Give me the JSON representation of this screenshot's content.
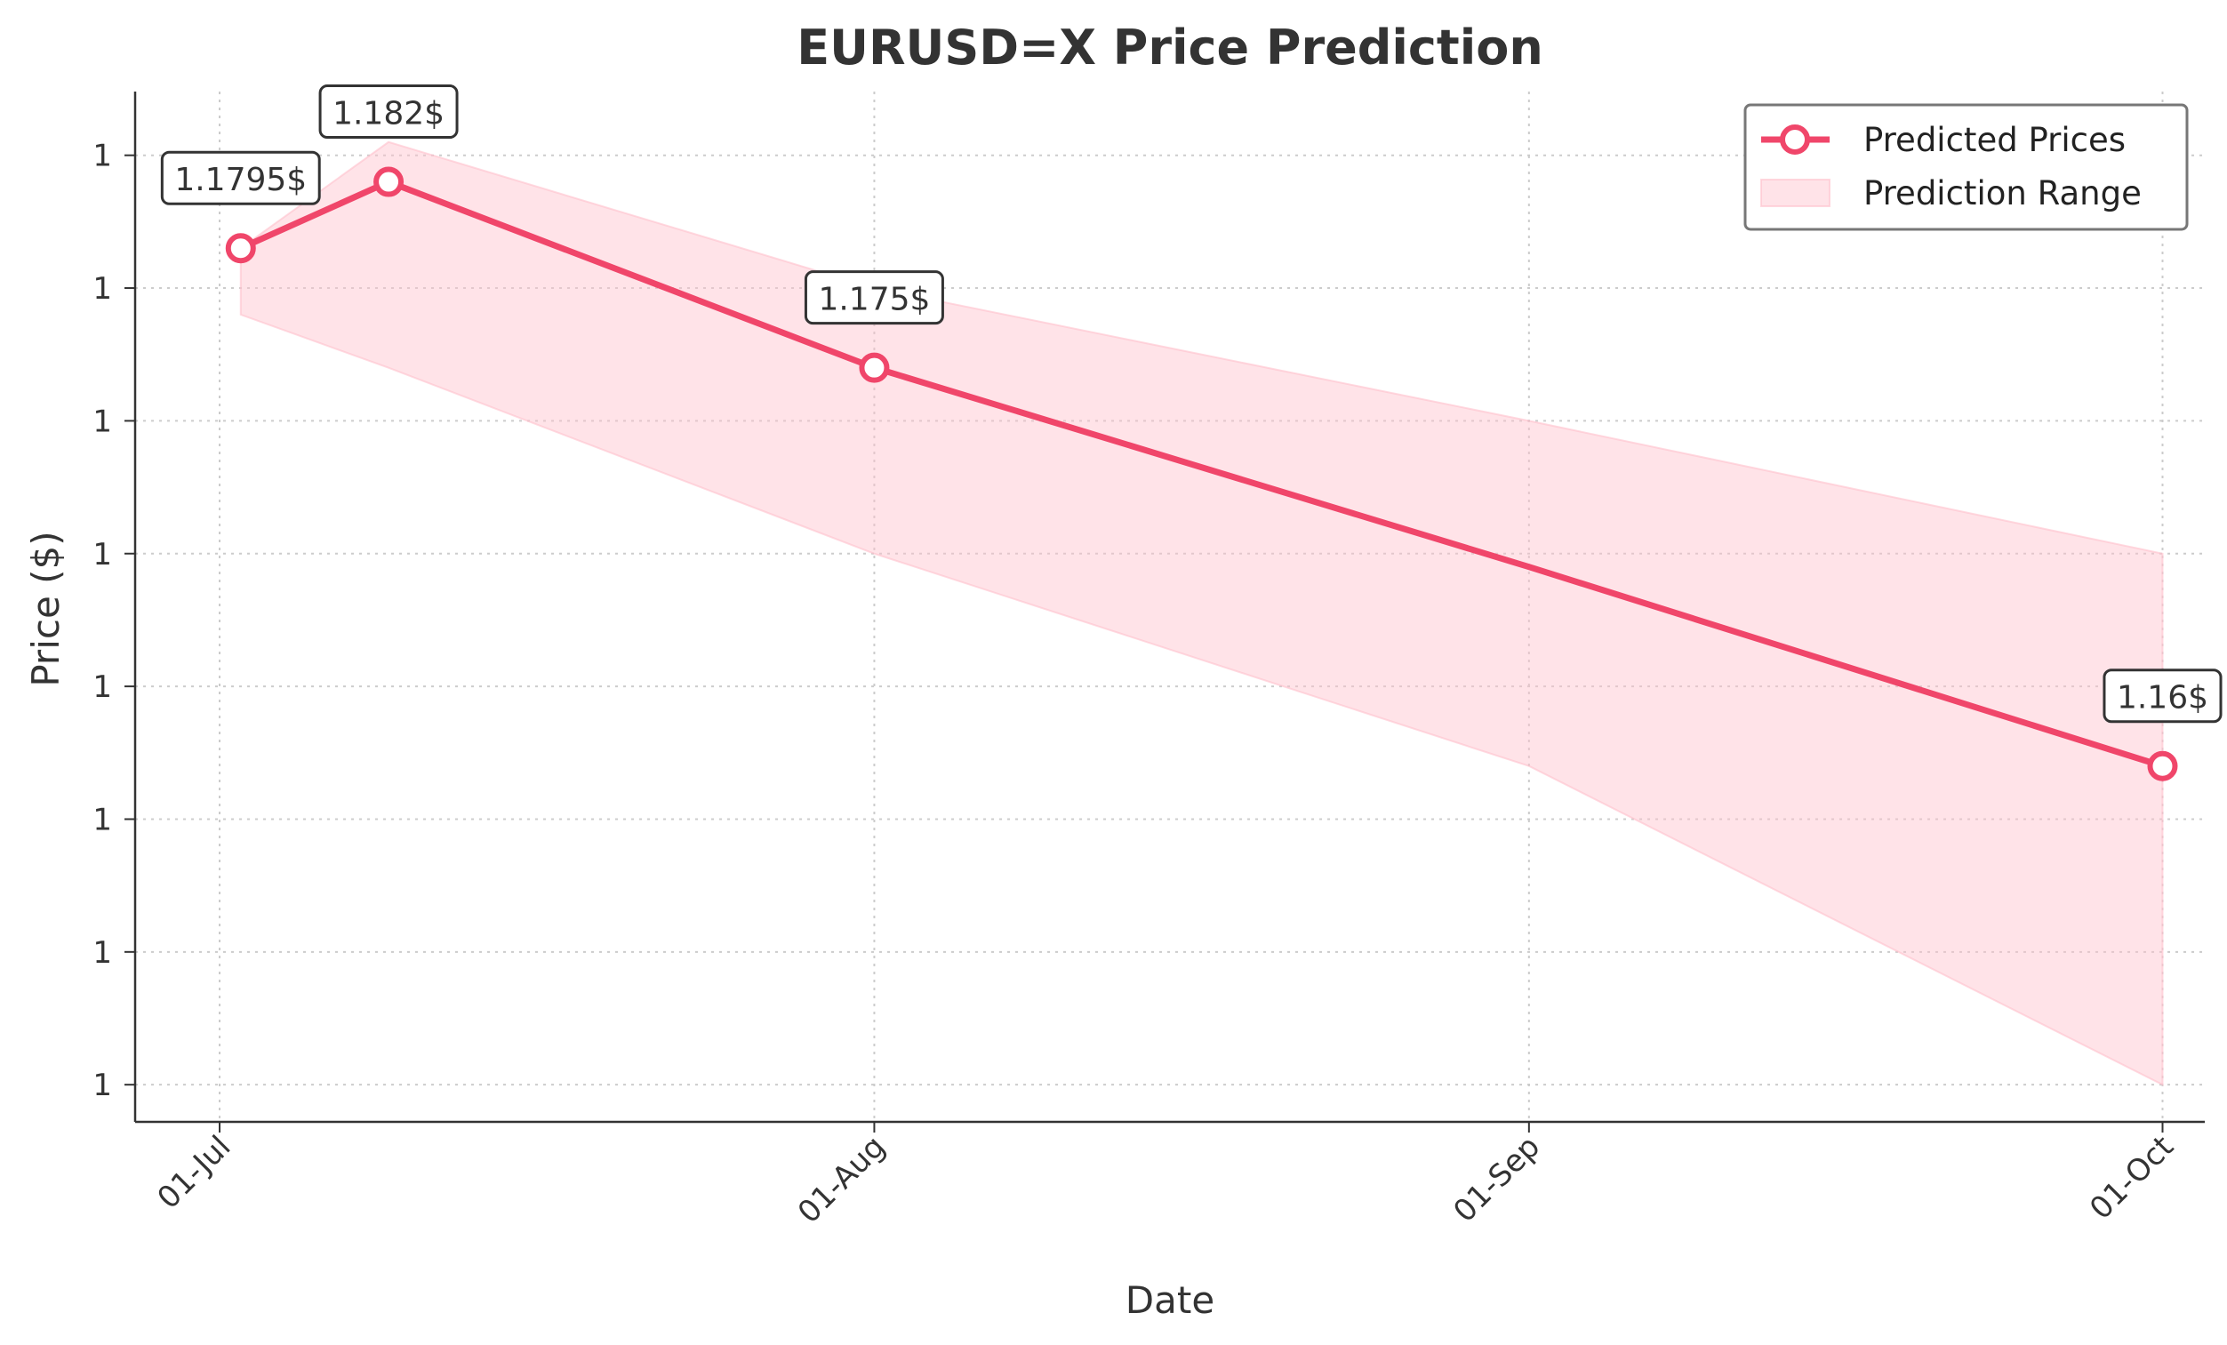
{
  "chart_data": {
    "type": "line",
    "title": "EURUSD=X Price Prediction",
    "xlabel": "Date",
    "ylabel": "Price ($)",
    "x_ticks": [
      "01-Jul",
      "01-Aug",
      "01-Sep",
      "01-Oct"
    ],
    "x_tick_dates": [
      "2025-07-01",
      "2025-08-01",
      "2025-09-01",
      "2025-10-01"
    ],
    "xlim": [
      "2025-06-27",
      "2025-10-03"
    ],
    "ylim": [
      1.1466,
      1.1854
    ],
    "y_ticks": [
      1.148,
      1.153,
      1.158,
      1.163,
      1.168,
      1.173,
      1.178,
      1.183
    ],
    "y_tick_labels": [
      "1",
      "1",
      "1",
      "1",
      "1",
      "1",
      "1",
      "1"
    ],
    "grid": true,
    "legend_position": "top-right",
    "series": [
      {
        "name": "Predicted Prices",
        "color": "#f0466a",
        "points": [
          {
            "x": "2025-07-02",
            "y": 1.1795,
            "label": "1.1795$"
          },
          {
            "x": "2025-07-09",
            "y": 1.182,
            "label": "1.182$"
          },
          {
            "x": "2025-08-01",
            "y": 1.175,
            "label": "1.175$"
          },
          {
            "x": "2025-09-01",
            "y": 1.1675,
            "label": ""
          },
          {
            "x": "2025-10-01",
            "y": 1.16,
            "label": "1.16$"
          }
        ]
      },
      {
        "name": "Prediction Range",
        "color": "#ffc0cb",
        "upper": [
          {
            "x": "2025-07-02",
            "y": 1.1795
          },
          {
            "x": "2025-07-09",
            "y": 1.1835
          },
          {
            "x": "2025-08-01",
            "y": 1.178
          },
          {
            "x": "2025-09-01",
            "y": 1.173
          },
          {
            "x": "2025-10-01",
            "y": 1.168
          }
        ],
        "lower": [
          {
            "x": "2025-07-02",
            "y": 1.177
          },
          {
            "x": "2025-07-09",
            "y": 1.175
          },
          {
            "x": "2025-08-01",
            "y": 1.168
          },
          {
            "x": "2025-09-01",
            "y": 1.16
          },
          {
            "x": "2025-10-01",
            "y": 1.148
          }
        ]
      }
    ]
  }
}
